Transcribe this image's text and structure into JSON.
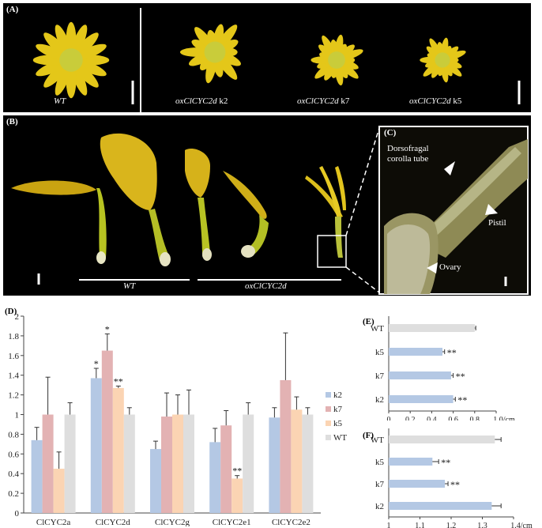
{
  "panelA": {
    "label": "(A)",
    "wt_label": "WT",
    "k2_prefix": "oxClCYC2d",
    "k2_suffix": " k2",
    "k7_prefix": "oxClCYC2d",
    "k7_suffix": " k7",
    "k5_prefix": "oxClCYC2d",
    "k5_suffix": " k5"
  },
  "panelB": {
    "label": "(B)",
    "wt_label": "WT",
    "ox_label": "oxClCYC2d"
  },
  "panelC": {
    "label": "(C)",
    "annot_tube_1": "Dorsofragal",
    "annot_tube_2": "corolla tube",
    "annot_pistil": "Pistil",
    "annot_ovary": "Ovary"
  },
  "colors": {
    "k2": "#b4c8e4",
    "k7": "#e3b2b3",
    "k5": "#fbd4b3",
    "wt": "#dedede"
  },
  "chart_data": [
    {
      "id": "D",
      "label": "(D)",
      "type": "bar",
      "categories": [
        "ClCYC2a",
        "ClCYC2d",
        "ClCYC2g",
        "ClCYC2e1",
        "ClCYC2e2"
      ],
      "ylim": [
        0,
        2
      ],
      "yticks": [
        "0",
        "0.2",
        "0.4",
        "0.6",
        "0.8",
        "1",
        "1.2",
        "1.4",
        "1.6",
        "1.8",
        "2"
      ],
      "legend_position": "right",
      "series": [
        {
          "name": "k2",
          "values": [
            0.74,
            1.37,
            0.65,
            0.72,
            0.97
          ],
          "errors": [
            0.13,
            0.1,
            0.08,
            0.14,
            0.1
          ],
          "sig": [
            "",
            "*",
            "",
            "",
            ""
          ]
        },
        {
          "name": "k7",
          "values": [
            1.0,
            1.65,
            0.98,
            0.89,
            1.35
          ],
          "errors": [
            0.38,
            0.17,
            0.24,
            0.15,
            0.48
          ],
          "sig": [
            "",
            "*",
            "",
            "",
            ""
          ]
        },
        {
          "name": "k5",
          "values": [
            0.45,
            1.27,
            1.0,
            0.35,
            1.05
          ],
          "errors": [
            0.17,
            0.02,
            0.2,
            0.03,
            0.13
          ],
          "sig": [
            "",
            "**",
            "",
            "**",
            ""
          ]
        },
        {
          "name": "WT",
          "values": [
            1.0,
            1.0,
            1.0,
            1.0,
            1.0
          ],
          "errors": [
            0.12,
            0.07,
            0.25,
            0.12,
            0.07
          ],
          "sig": [
            "",
            "",
            "",
            "",
            ""
          ]
        }
      ]
    },
    {
      "id": "E",
      "label": "(E)",
      "type": "bar",
      "orientation": "horizontal",
      "categories": [
        "WT",
        "k5",
        "k7",
        "k2"
      ],
      "values": [
        0.8,
        0.5,
        0.58,
        0.6
      ],
      "errors": [
        0.01,
        0.02,
        0.02,
        0.02
      ],
      "sig": [
        "",
        "**",
        "**",
        "**"
      ],
      "xlim": [
        0,
        1.0
      ],
      "xticks": [
        "0",
        "0.2",
        "0.4",
        "0.6",
        "0.8",
        "1.0/cm"
      ]
    },
    {
      "id": "F",
      "label": "(F)",
      "type": "bar",
      "orientation": "horizontal",
      "categories": [
        "WT",
        "k5",
        "k7",
        "k2"
      ],
      "values": [
        1.34,
        1.14,
        1.18,
        1.33
      ],
      "errors": [
        0.02,
        0.02,
        0.01,
        0.03
      ],
      "sig": [
        "",
        "**",
        "**",
        ""
      ],
      "xlim": [
        1,
        1.4
      ],
      "xticks": [
        "1",
        "1.1",
        "1.2",
        "1.3",
        "1.4/cm"
      ]
    }
  ]
}
